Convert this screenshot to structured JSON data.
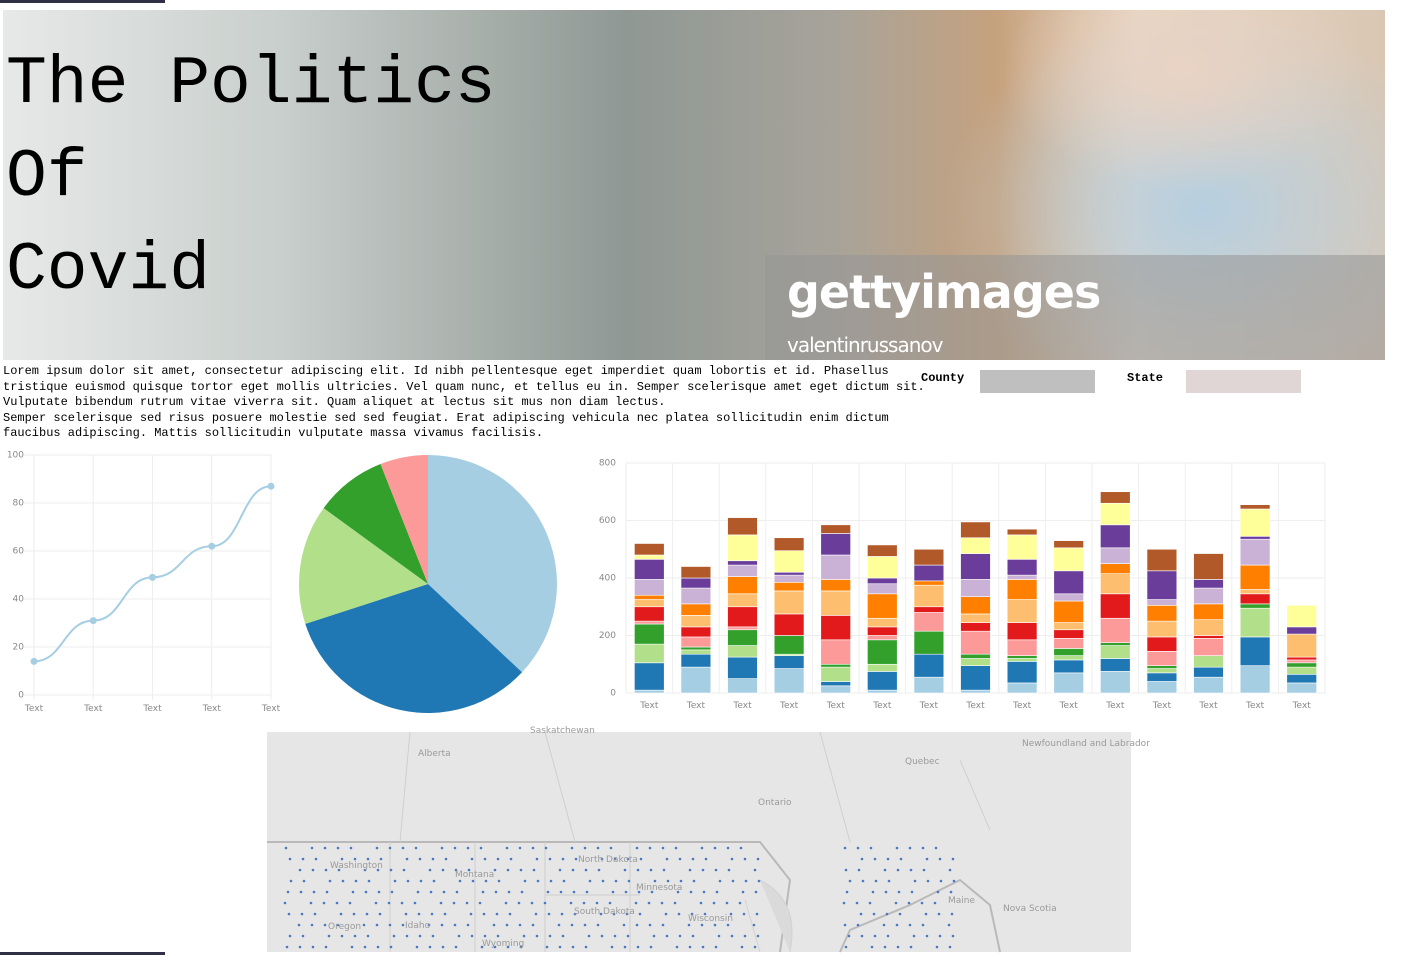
{
  "header": {
    "title_lines": [
      "The Politics",
      "Of",
      "Covid"
    ],
    "watermark": "gettyimages",
    "credit": "valentinrussanov"
  },
  "paragraph_lines": [
    "Lorem ipsum dolor sit amet, consectetur adipiscing elit. Id nibh pellentesque eget imperdiet quam lobortis et id. Phasellus",
    "tristique euismod quisque tortor eget mollis ultricies. Vel quam nunc, et tellus eu in. Semper scelerisque amet eget dictum sit.",
    "Vulputate bibendum rutrum vitae viverra sit. Quam aliquet at lectus sit mus non diam lectus.",
    "Semper scelerisque sed risus posuere molestie sed sed feugiat. Erat adipiscing vehicula nec platea sollicitudin enim dictum",
    "faucibus adipiscing. Mattis sollicitudin vulputate massa vivamus facilisis."
  ],
  "filters": [
    {
      "label": "County",
      "color": "#bfbfbf"
    },
    {
      "label": "State",
      "color": "#e0d6d6"
    }
  ],
  "chart_data": [
    {
      "type": "line",
      "categories": [
        "Text",
        "Text",
        "Text",
        "Text",
        "Text"
      ],
      "values": [
        14,
        31,
        49,
        62,
        87
      ],
      "color": "#a6cee3",
      "ylim": [
        0,
        100
      ],
      "yticks": [
        0,
        20,
        40,
        60,
        80,
        100
      ],
      "grid": true
    },
    {
      "type": "pie",
      "values": [
        37,
        33,
        15,
        9,
        6
      ],
      "colors": [
        "#a6cee3",
        "#1f78b4",
        "#b2df8a",
        "#33a02c",
        "#fb9a99"
      ]
    },
    {
      "type": "stacked_bar",
      "categories": [
        "Text",
        "Text",
        "Text",
        "Text",
        "Text",
        "Text",
        "Text",
        "Text",
        "Text",
        "Text",
        "Text",
        "Text",
        "Text",
        "Text",
        "Text"
      ],
      "ylim": [
        0,
        800
      ],
      "yticks": [
        0,
        200,
        400,
        600,
        800
      ],
      "grid": true,
      "series": [
        {
          "color": "#a6cee3",
          "values": [
            10,
            90,
            50,
            85,
            25,
            10,
            55,
            10,
            35,
            70,
            75,
            40,
            55,
            95,
            35
          ]
        },
        {
          "color": "#1f78b4",
          "values": [
            95,
            45,
            75,
            45,
            15,
            65,
            80,
            85,
            75,
            45,
            45,
            30,
            35,
            100,
            30
          ]
        },
        {
          "color": "#b2df8a",
          "values": [
            65,
            15,
            40,
            5,
            50,
            25,
            0,
            25,
            10,
            15,
            45,
            15,
            40,
            100,
            25
          ]
        },
        {
          "color": "#33a02c",
          "values": [
            70,
            10,
            55,
            65,
            10,
            85,
            80,
            15,
            10,
            25,
            10,
            10,
            0,
            15,
            15
          ]
        },
        {
          "color": "#fb9a99",
          "values": [
            10,
            35,
            10,
            0,
            85,
            15,
            65,
            80,
            55,
            35,
            85,
            50,
            60,
            0,
            10
          ]
        },
        {
          "color": "#e31a1c",
          "values": [
            50,
            35,
            70,
            75,
            85,
            30,
            20,
            30,
            60,
            30,
            85,
            50,
            10,
            35,
            10
          ]
        },
        {
          "color": "#fdbf6f",
          "values": [
            25,
            40,
            45,
            80,
            85,
            30,
            75,
            30,
            80,
            25,
            70,
            55,
            55,
            15,
            80
          ]
        },
        {
          "color": "#ff7f00",
          "values": [
            15,
            40,
            60,
            30,
            40,
            85,
            15,
            60,
            70,
            75,
            35,
            55,
            55,
            85,
            0
          ]
        },
        {
          "color": "#cab2d6",
          "values": [
            55,
            55,
            40,
            25,
            85,
            35,
            0,
            60,
            15,
            25,
            55,
            20,
            55,
            90,
            0
          ]
        },
        {
          "color": "#6a3d9a",
          "values": [
            70,
            35,
            15,
            10,
            75,
            20,
            55,
            90,
            55,
            80,
            80,
            100,
            30,
            10,
            25
          ]
        },
        {
          "color": "#ffff99",
          "values": [
            15,
            0,
            90,
            75,
            0,
            75,
            0,
            55,
            85,
            80,
            75,
            0,
            0,
            95,
            75
          ]
        },
        {
          "color": "#b15928",
          "values": [
            40,
            40,
            60,
            45,
            30,
            40,
            55,
            55,
            20,
            25,
            40,
            75,
            90,
            15,
            0
          ]
        }
      ]
    }
  ],
  "map": {
    "labels": [
      "Saskatchewan",
      "Alberta",
      "Quebec",
      "Newfoundland and Labrador",
      "Ontario",
      "Washington",
      "Montana",
      "North Dakota",
      "Minnesota",
      "South Dakota",
      "Wisconsin",
      "Maine",
      "Nova Scotia",
      "Idaho",
      "Oregon",
      "Wyoming"
    ]
  }
}
